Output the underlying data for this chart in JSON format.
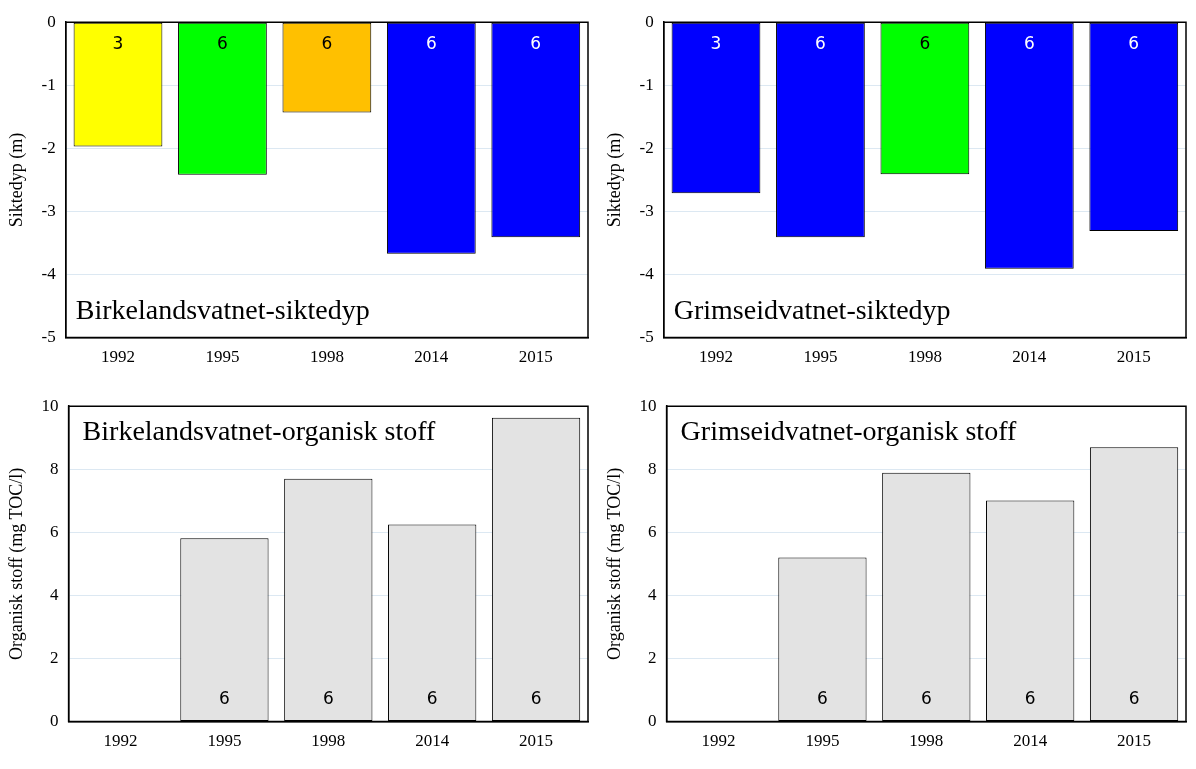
{
  "chart_data": [
    {
      "type": "bar",
      "title": "Birkelandsvatnet-siktedyp",
      "ylabel": "Siktedyp (m)",
      "categories": [
        "1992",
        "1995",
        "1998",
        "2014",
        "2015"
      ],
      "values": [
        -1.97,
        -2.42,
        -1.43,
        -3.67,
        -3.41
      ],
      "colors": [
        "#ffff00",
        "#00ff00",
        "#ffc000",
        "#0000ff",
        "#0000ff"
      ],
      "annotations": [
        "3",
        "6",
        "6",
        "6",
        "6"
      ],
      "ylim": [
        -5,
        0
      ],
      "yticks": [
        -5,
        -4,
        -3,
        -2,
        -1,
        0
      ],
      "grid": "y"
    },
    {
      "type": "bar",
      "title": "Grimseidvatnet-siktedyp",
      "ylabel": "Siktedyp (m)",
      "categories": [
        "1992",
        "1995",
        "1998",
        "2014",
        "2015"
      ],
      "values": [
        -2.71,
        -3.41,
        -2.41,
        -3.91,
        -3.31
      ],
      "colors": [
        "#0000ff",
        "#0000ff",
        "#00ff00",
        "#0000ff",
        "#0000ff"
      ],
      "annotations": [
        "3",
        "6",
        "6",
        "6",
        "6"
      ],
      "ylim": [
        -5,
        0
      ],
      "yticks": [
        -5,
        -4,
        -3,
        -2,
        -1,
        0
      ],
      "grid": "y"
    },
    {
      "type": "bar",
      "title": "Birkelandsvatnet-organisk stoff",
      "ylabel": "Organisk stoff (mg TOC/l)",
      "categories": [
        "1992",
        "1995",
        "1998",
        "2014",
        "2015"
      ],
      "values": [
        null,
        5.81,
        7.7,
        6.25,
        9.63
      ],
      "color": "#e3e3e3",
      "annotations": [
        "6",
        "6",
        "6",
        "6"
      ],
      "ylim": [
        0,
        10
      ],
      "yticks": [
        0,
        2,
        4,
        6,
        8,
        10
      ],
      "grid": "y"
    },
    {
      "type": "bar",
      "title": "Grimseidvatnet-organisk stoff",
      "ylabel": "Organisk stoff (mg TOC/l)",
      "categories": [
        "1992",
        "1995",
        "1998",
        "2014",
        "2015"
      ],
      "values": [
        null,
        5.2,
        7.89,
        7.01,
        8.7
      ],
      "color": "#e3e3e3",
      "annotations": [
        "6",
        "6",
        "6",
        "6"
      ],
      "ylim": [
        0,
        10
      ],
      "yticks": [
        0,
        2,
        4,
        6,
        8,
        10
      ],
      "grid": "y"
    }
  ]
}
